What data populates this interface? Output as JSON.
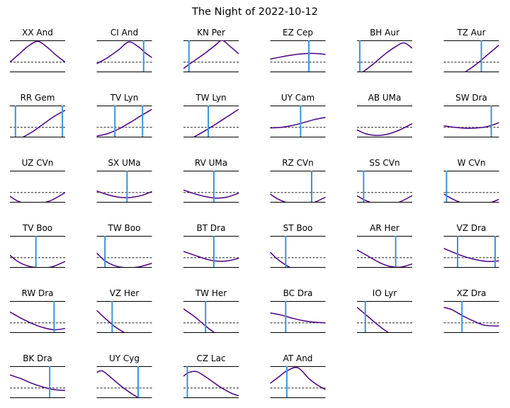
{
  "figure": {
    "title": "The Night of 2022-10-12"
  },
  "colors": {
    "curve": "#4b0082",
    "marker": "#3a94dc",
    "frame": "#000000",
    "dash": "#000000"
  },
  "chart_data": [
    {
      "type": "line",
      "title": "XX And",
      "x": [
        0,
        0.16,
        0.32,
        0.5,
        0.66,
        0.82,
        1
      ],
      "y": [
        0.3,
        0.55,
        0.8,
        0.97,
        0.8,
        0.55,
        0.3
      ],
      "markers": []
    },
    {
      "type": "line",
      "title": "CI And",
      "x": [
        0,
        0.2,
        0.4,
        0.58,
        0.75,
        0.88,
        1
      ],
      "y": [
        0.25,
        0.45,
        0.7,
        0.95,
        0.8,
        0.6,
        0.45
      ],
      "markers": [
        0.85
      ]
    },
    {
      "type": "line",
      "title": "KN Per",
      "x": [
        0,
        0.2,
        0.4,
        0.58,
        0.7,
        0.85,
        1
      ],
      "y": [
        0.1,
        0.35,
        0.6,
        0.85,
        1.0,
        0.8,
        0.57
      ],
      "markers": [
        0.1
      ]
    },
    {
      "type": "line",
      "title": "EZ Cep",
      "x": [
        0,
        0.2,
        0.4,
        0.6,
        0.8,
        1
      ],
      "y": [
        0.4,
        0.47,
        0.53,
        0.57,
        0.58,
        0.55
      ],
      "markers": [
        0.7
      ]
    },
    {
      "type": "line",
      "title": "BH Aur",
      "x": [
        0,
        0.1,
        0.3,
        0.5,
        0.7,
        0.85,
        1
      ],
      "y": [
        -0.1,
        -0.02,
        0.25,
        0.55,
        0.8,
        0.92,
        0.75
      ],
      "markers": [
        0.05
      ]
    },
    {
      "type": "line",
      "title": "TZ Aur",
      "x": [
        0,
        0.2,
        0.4,
        0.6,
        0.8,
        1
      ],
      "y": [
        -0.3,
        -0.2,
        0.0,
        0.25,
        0.55,
        0.85
      ],
      "markers": [
        0.68
      ]
    },
    {
      "type": "line",
      "title": "RR Gem",
      "x": [
        0,
        0.2,
        0.4,
        0.6,
        0.8,
        1
      ],
      "y": [
        -0.25,
        -0.05,
        0.15,
        0.4,
        0.65,
        0.85
      ],
      "markers": [
        0.1,
        0.95
      ]
    },
    {
      "type": "line",
      "title": "TV Lyn",
      "x": [
        0,
        0.2,
        0.4,
        0.6,
        0.8,
        1
      ],
      "y": [
        0.02,
        0.1,
        0.25,
        0.45,
        0.67,
        0.88
      ],
      "markers": [
        0.33,
        0.83
      ]
    },
    {
      "type": "line",
      "title": "TW Lyn",
      "x": [
        0,
        0.2,
        0.4,
        0.6,
        0.8,
        1
      ],
      "y": [
        -0.2,
        0.0,
        0.2,
        0.42,
        0.65,
        0.88
      ],
      "markers": [
        0.45
      ]
    },
    {
      "type": "line",
      "title": "UY Cam",
      "x": [
        0,
        0.2,
        0.4,
        0.6,
        0.8,
        1
      ],
      "y": [
        0.28,
        0.3,
        0.36,
        0.45,
        0.55,
        0.62
      ],
      "markers": [
        0.55
      ]
    },
    {
      "type": "line",
      "title": "AB UMa",
      "x": [
        0,
        0.15,
        0.35,
        0.55,
        0.75,
        1
      ],
      "y": [
        0.22,
        0.1,
        0.04,
        0.08,
        0.2,
        0.42
      ],
      "markers": []
    },
    {
      "type": "line",
      "title": "SW Dra",
      "x": [
        0,
        0.2,
        0.4,
        0.6,
        0.8,
        1
      ],
      "y": [
        0.35,
        0.3,
        0.27,
        0.28,
        0.33,
        0.45
      ],
      "markers": [
        0.86
      ]
    },
    {
      "type": "line",
      "title": "UZ CVn",
      "x": [
        0,
        0.15,
        0.35,
        0.55,
        0.75,
        1
      ],
      "y": [
        0.18,
        0.02,
        -0.08,
        -0.05,
        0.05,
        0.3
      ],
      "markers": []
    },
    {
      "type": "line",
      "title": "SX UMa",
      "x": [
        0,
        0.2,
        0.4,
        0.6,
        0.8,
        1
      ],
      "y": [
        0.35,
        0.23,
        0.15,
        0.14,
        0.2,
        0.33
      ],
      "markers": [
        0.55
      ]
    },
    {
      "type": "line",
      "title": "RV UMa",
      "x": [
        0,
        0.2,
        0.4,
        0.6,
        0.8,
        1
      ],
      "y": [
        0.38,
        0.26,
        0.17,
        0.12,
        0.16,
        0.28
      ],
      "markers": [
        0.55
      ]
    },
    {
      "type": "line",
      "title": "RZ CVn",
      "x": [
        0,
        0.15,
        0.35,
        0.55,
        0.75,
        1
      ],
      "y": [
        0.25,
        0.08,
        -0.05,
        -0.1,
        -0.05,
        0.15
      ],
      "markers": [
        0.75
      ]
    },
    {
      "type": "line",
      "title": "SS CVn",
      "x": [
        0,
        0.15,
        0.35,
        0.55,
        0.75,
        1
      ],
      "y": [
        0.2,
        0.05,
        -0.07,
        -0.08,
        -0.02,
        0.2
      ],
      "markers": [
        0.12
      ]
    },
    {
      "type": "line",
      "title": "W CVn",
      "x": [
        0,
        0.15,
        0.35,
        0.55,
        0.75,
        1
      ],
      "y": [
        0.25,
        0.1,
        -0.05,
        -0.1,
        -0.08,
        0.08
      ],
      "markers": [
        0.05
      ]
    },
    {
      "type": "line",
      "title": "TV Boo",
      "x": [
        0,
        0.15,
        0.35,
        0.55,
        0.75,
        1
      ],
      "y": [
        0.38,
        0.17,
        0.02,
        -0.02,
        0.0,
        0.18
      ],
      "markers": [
        0.47
      ]
    },
    {
      "type": "line",
      "title": "TW Boo",
      "x": [
        0,
        0.15,
        0.35,
        0.55,
        0.75,
        1
      ],
      "y": [
        0.45,
        0.2,
        0.03,
        -0.02,
        0.0,
        0.12
      ],
      "markers": [
        0.15
      ]
    },
    {
      "type": "line",
      "title": "BT Dra",
      "x": [
        0,
        0.2,
        0.4,
        0.6,
        0.8,
        1
      ],
      "y": [
        0.5,
        0.38,
        0.26,
        0.19,
        0.2,
        0.28
      ],
      "markers": [
        0.55
      ]
    },
    {
      "type": "line",
      "title": "ST Boo",
      "x": [
        0,
        0.1,
        0.25,
        0.4,
        0.55,
        0.75,
        1
      ],
      "y": [
        0.48,
        0.3,
        0.1,
        -0.05,
        -0.15,
        -0.2,
        -0.15
      ],
      "markers": [
        0.28
      ]
    },
    {
      "type": "line",
      "title": "AR Her",
      "x": [
        0,
        0.2,
        0.4,
        0.6,
        0.8,
        1
      ],
      "y": [
        0.55,
        0.35,
        0.15,
        0.02,
        0.0,
        0.1
      ],
      "markers": [
        0.7
      ]
    },
    {
      "type": "line",
      "title": "VZ Dra",
      "x": [
        0,
        0.2,
        0.4,
        0.6,
        0.8,
        1
      ],
      "y": [
        0.6,
        0.45,
        0.32,
        0.23,
        0.18,
        0.2
      ],
      "markers": [
        0.25,
        0.93
      ]
    },
    {
      "type": "line",
      "title": "RW Dra",
      "x": [
        0,
        0.2,
        0.4,
        0.6,
        0.8,
        1
      ],
      "y": [
        0.65,
        0.45,
        0.28,
        0.15,
        0.08,
        0.12
      ],
      "markers": [
        0.8
      ]
    },
    {
      "type": "line",
      "title": "VZ Her",
      "x": [
        0,
        0.15,
        0.35,
        0.55,
        0.75,
        1
      ],
      "y": [
        0.7,
        0.45,
        0.15,
        -0.05,
        -0.15,
        -0.2
      ],
      "markers": [
        0.28
      ]
    },
    {
      "type": "line",
      "title": "TW Her",
      "x": [
        0,
        0.2,
        0.4,
        0.55,
        0.75,
        1
      ],
      "y": [
        0.75,
        0.5,
        0.2,
        0.0,
        -0.2,
        -0.4
      ],
      "markers": [
        0.4
      ]
    },
    {
      "type": "line",
      "title": "BC Dra",
      "x": [
        0,
        0.2,
        0.4,
        0.6,
        0.8,
        1
      ],
      "y": [
        0.62,
        0.55,
        0.45,
        0.37,
        0.32,
        0.3
      ],
      "markers": [
        0.28
      ]
    },
    {
      "type": "line",
      "title": "IO Lyr",
      "x": [
        0,
        0.2,
        0.4,
        0.6,
        0.8,
        1
      ],
      "y": [
        0.8,
        0.5,
        0.2,
        -0.05,
        -0.25,
        -0.35
      ],
      "markers": [
        0.15
      ]
    },
    {
      "type": "line",
      "title": "XZ Dra",
      "x": [
        0,
        0.15,
        0.35,
        0.55,
        0.75,
        1
      ],
      "y": [
        0.8,
        0.72,
        0.52,
        0.35,
        0.22,
        0.2
      ],
      "markers": [
        0.33
      ]
    },
    {
      "type": "line",
      "title": "BK Dra",
      "x": [
        0,
        0.2,
        0.4,
        0.6,
        0.8,
        1
      ],
      "y": [
        0.72,
        0.6,
        0.45,
        0.33,
        0.25,
        0.22
      ],
      "markers": [
        0.72
      ]
    },
    {
      "type": "line",
      "title": "UY Cyg",
      "x": [
        0,
        0.1,
        0.25,
        0.45,
        0.65,
        0.85,
        1
      ],
      "y": [
        0.8,
        0.85,
        0.65,
        0.35,
        0.1,
        -0.1,
        -0.2
      ],
      "markers": [
        0.75
      ]
    },
    {
      "type": "line",
      "title": "CZ Lac",
      "x": [
        0,
        0.1,
        0.25,
        0.45,
        0.65,
        0.85,
        1
      ],
      "y": [
        0.68,
        0.8,
        0.82,
        0.6,
        0.35,
        0.15,
        0.05
      ],
      "markers": [
        0.07
      ]
    },
    {
      "type": "line",
      "title": "AT And",
      "x": [
        0,
        0.15,
        0.3,
        0.5,
        0.7,
        0.85,
        1
      ],
      "y": [
        0.45,
        0.65,
        0.85,
        0.95,
        0.6,
        0.4,
        0.25
      ],
      "markers": [
        0.3
      ]
    }
  ]
}
